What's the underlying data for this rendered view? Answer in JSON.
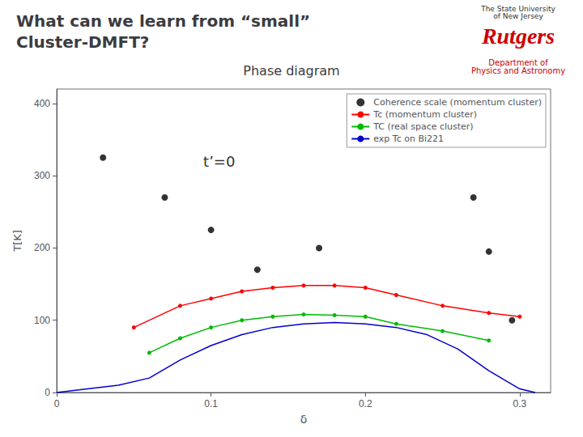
{
  "chart_data": {
    "type": "line",
    "title": "What can we learn from “small”\nCluster-DMFT?",
    "subtitle": "Phase diagram",
    "xlabel": "δ",
    "ylabel": "T[K]",
    "xlim": [
      0,
      0.32
    ],
    "ylim": [
      0,
      420
    ],
    "xticks": [
      0,
      0.1,
      0.2,
      0.3
    ],
    "yticks": [
      0,
      100,
      200,
      300,
      400
    ],
    "grid": false,
    "legend": "upper right",
    "annotations": [
      {
        "text": "t’=0",
        "x": 0.095,
        "y": 310
      },
      {
        "text": "The State University\nof New Jersey"
      },
      {
        "text": "Rutgers",
        "color": "#cc0000"
      },
      {
        "text": "Department of\nPhysics and Astronomy",
        "color": "#cc0000"
      }
    ],
    "series": [
      {
        "name": "Coherence scale (momentum cluster)",
        "type": "scatter",
        "marker": "circle",
        "color": "#000000",
        "x": [
          0.03,
          0.07,
          0.1,
          0.13,
          0.17,
          0.27,
          0.28,
          0.295
        ],
        "values": [
          325,
          270,
          225,
          170,
          200,
          270,
          195,
          100
        ]
      },
      {
        "name": "Tc (momentum cluster)",
        "type": "line",
        "marker": "circle",
        "color": "#ff0000",
        "x": [
          0.05,
          0.08,
          0.1,
          0.12,
          0.14,
          0.16,
          0.18,
          0.2,
          0.22,
          0.25,
          0.28,
          0.3
        ],
        "values": [
          90,
          120,
          130,
          140,
          145,
          148,
          148,
          145,
          135,
          120,
          110,
          105
        ]
      },
      {
        "name": "TC (real space cluster)",
        "type": "line",
        "marker": "circle",
        "color": "#00bb00",
        "x": [
          0.06,
          0.08,
          0.1,
          0.12,
          0.14,
          0.16,
          0.18,
          0.2,
          0.22,
          0.25,
          0.28
        ],
        "values": [
          55,
          75,
          90,
          100,
          105,
          108,
          107,
          105,
          95,
          85,
          72
        ]
      },
      {
        "name": "exp Tc on Bi221",
        "type": "line",
        "marker": "none",
        "color": "#0000cc",
        "x": [
          0.0,
          0.02,
          0.04,
          0.06,
          0.08,
          0.1,
          0.12,
          0.14,
          0.16,
          0.18,
          0.2,
          0.22,
          0.24,
          0.26,
          0.28,
          0.3,
          0.31
        ],
        "values": [
          0,
          5,
          10,
          20,
          45,
          65,
          80,
          90,
          95,
          97,
          95,
          90,
          80,
          60,
          30,
          5,
          0
        ]
      }
    ]
  }
}
